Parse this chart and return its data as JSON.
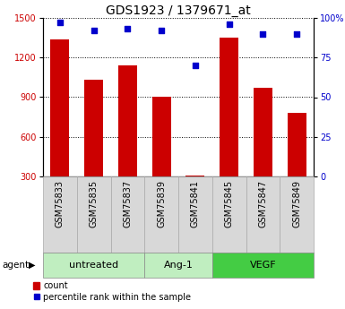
{
  "title": "GDS1923 / 1379671_at",
  "samples": [
    "GSM75833",
    "GSM75835",
    "GSM75837",
    "GSM75839",
    "GSM75841",
    "GSM75845",
    "GSM75847",
    "GSM75849"
  ],
  "counts": [
    1340,
    1030,
    1140,
    900,
    310,
    1350,
    970,
    780
  ],
  "percentiles": [
    97,
    92,
    93,
    92,
    70,
    96,
    90,
    90
  ],
  "groups": [
    {
      "label": "untreated",
      "indices": [
        0,
        1,
        2
      ],
      "color": "#c0eec0"
    },
    {
      "label": "Ang-1",
      "indices": [
        3,
        4
      ],
      "color": "#c0eec0"
    },
    {
      "label": "VEGF",
      "indices": [
        5,
        6,
        7
      ],
      "color": "#44cc44"
    }
  ],
  "bar_color": "#cc0000",
  "dot_color": "#0000cc",
  "left_ylim": [
    300,
    1500
  ],
  "left_yticks": [
    300,
    600,
    900,
    1200,
    1500
  ],
  "right_ylim": [
    0,
    100
  ],
  "right_yticks": [
    0,
    25,
    50,
    75,
    100
  ],
  "right_yticklabels": [
    "0",
    "25",
    "50",
    "75",
    "100%"
  ],
  "left_label_color": "#cc0000",
  "right_label_color": "#0000cc",
  "tick_label_fontsize": 7,
  "title_fontsize": 10,
  "legend_fontsize": 7,
  "group_label_fontsize": 8,
  "sample_label_fontsize": 7,
  "agent_label": "agent",
  "sample_box_color": "#d8d8d8",
  "background_color": "#ffffff"
}
